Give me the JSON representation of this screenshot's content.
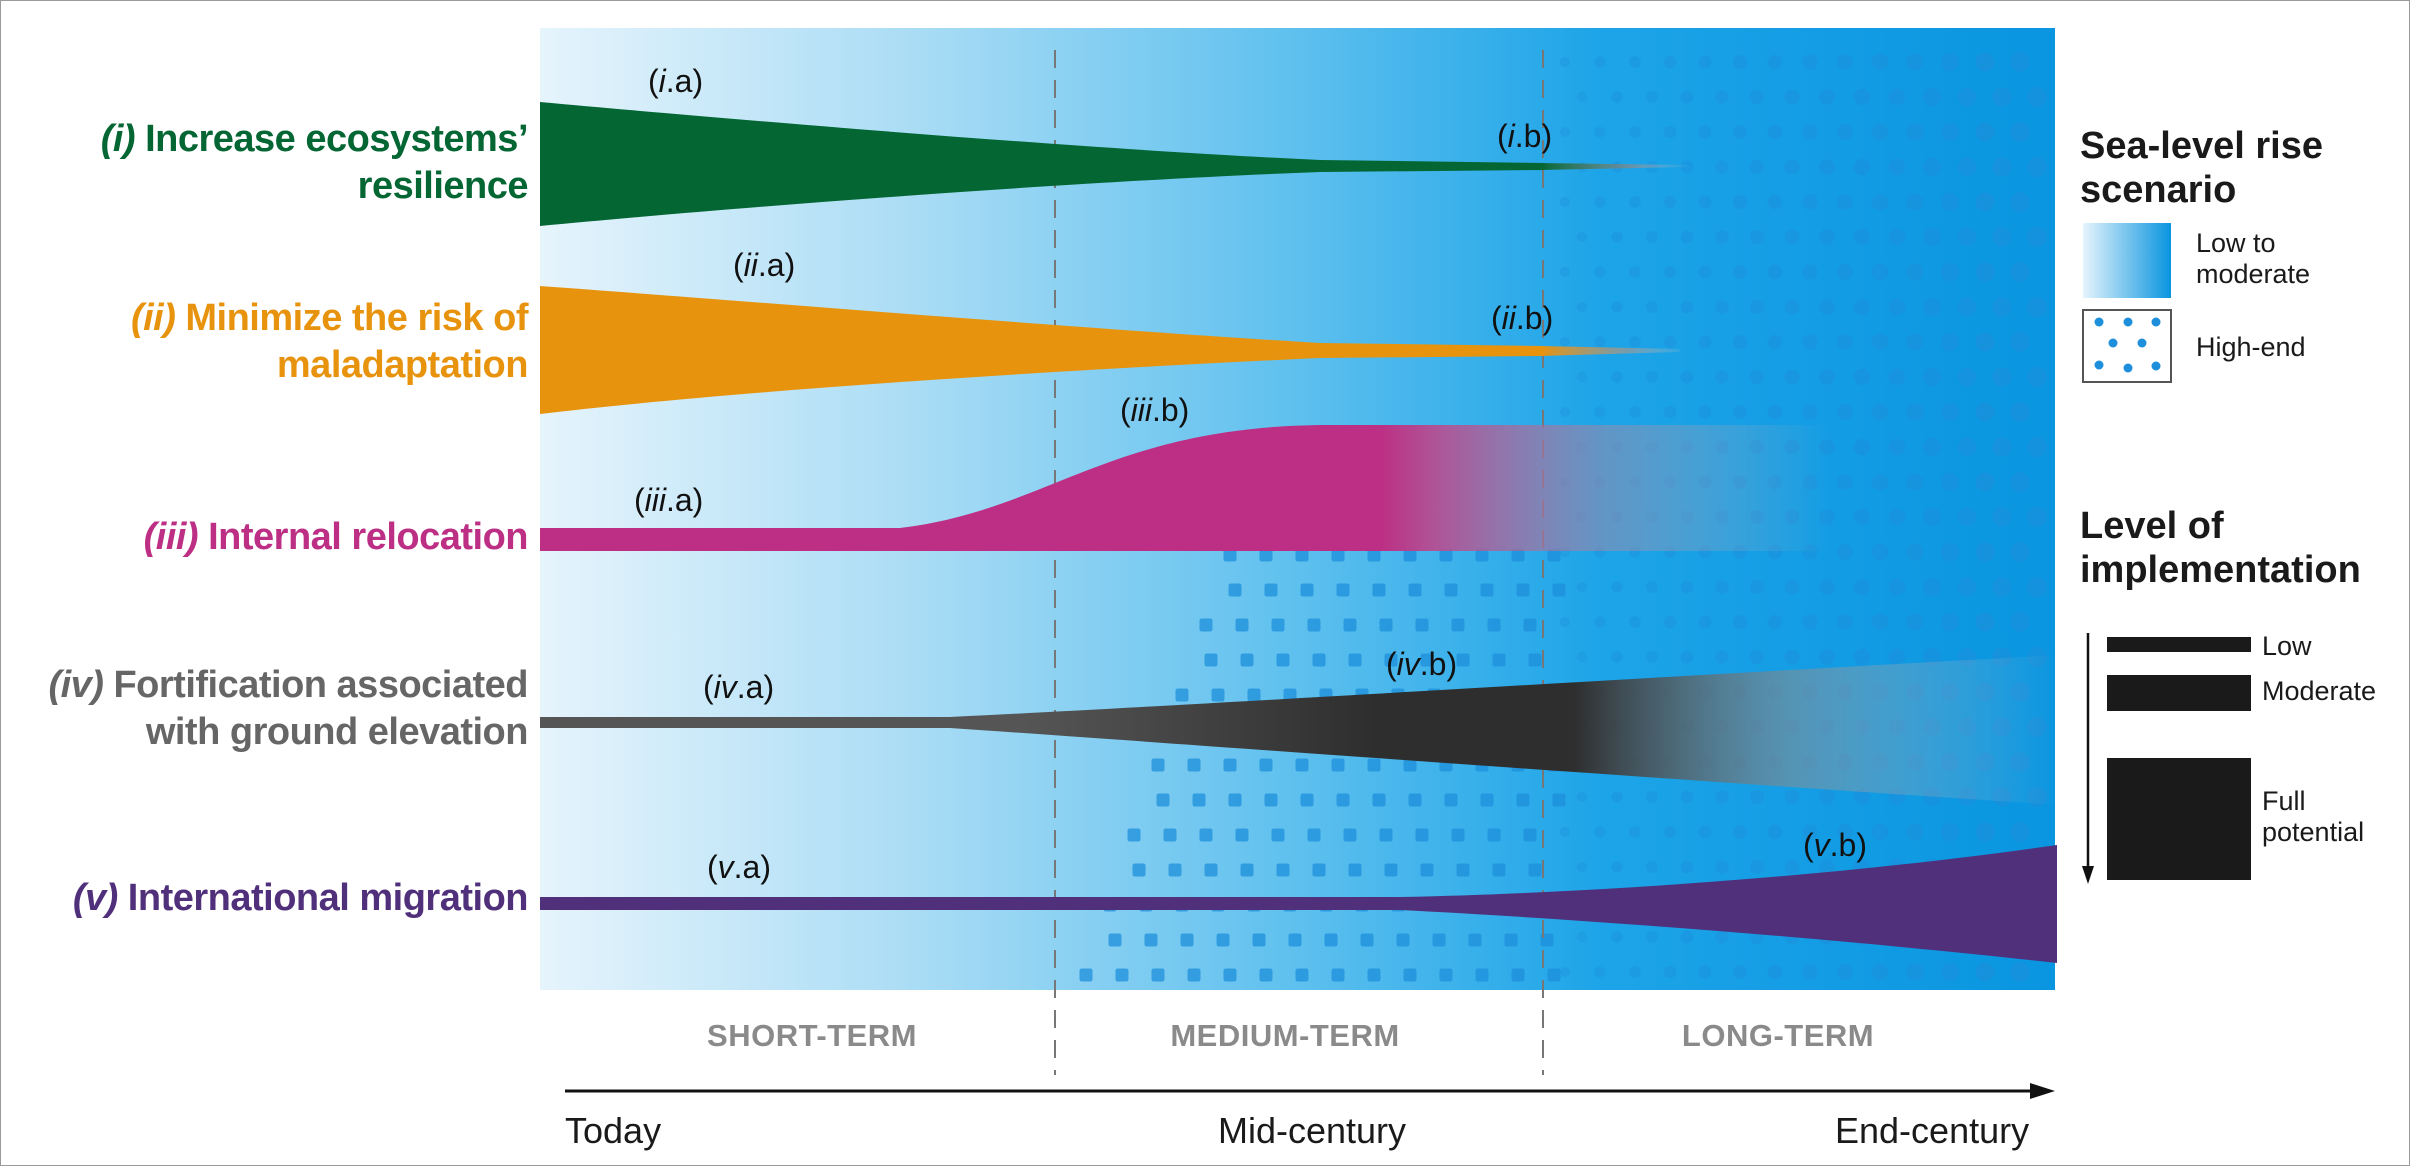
{
  "rows": [
    {
      "num": "(i)",
      "line1": "Increase ecosystems’",
      "line2": "resilience",
      "color": "#036633",
      "start_label": [
        "i",
        ".a"
      ],
      "end_label": [
        "i",
        ".b"
      ]
    },
    {
      "num": "(ii)",
      "line1": "Minimize the risk of",
      "line2": "maladaptation",
      "color": "#e8930d",
      "start_label": [
        "ii",
        ".a"
      ],
      "end_label": [
        "ii",
        ".b"
      ]
    },
    {
      "num": "(iii)",
      "line1": "Internal relocation",
      "line2": "",
      "color": "#bc2f84",
      "start_label": [
        "iii",
        ".a"
      ],
      "end_label": [
        "iii",
        ".b"
      ]
    },
    {
      "num": "(iv)",
      "line1": "Fortification associated",
      "line2": "with ground elevation",
      "color": "#666666",
      "start_label": [
        "iv",
        ".a"
      ],
      "end_label": [
        "iv",
        ".b"
      ]
    },
    {
      "num": "(v)",
      "line1": "International migration",
      "line2": "",
      "color": "#51307b",
      "start_label": [
        "v",
        ".a"
      ],
      "end_label": [
        "v",
        ".b"
      ]
    }
  ],
  "periods": [
    "SHORT-TERM",
    "MEDIUM-TERM",
    "LONG-TERM"
  ],
  "timeline": {
    "start": "Today",
    "mid": "Mid-century",
    "end": "End-century"
  },
  "legend": {
    "scenario_title_1": "Sea-level rise",
    "scenario_title_2": "scenario",
    "low_1": "Low to",
    "low_2": "moderate",
    "high": "High-end",
    "impl_title_1": "Level of",
    "impl_title_2": "implementation",
    "impl_low": "Low",
    "impl_moderate": "Moderate",
    "impl_full_1": "Full",
    "impl_full_2": "potential"
  },
  "colors": {
    "sea_light": "#e6f4fc",
    "sea_mid": "#5ec0ee",
    "sea_dark": "#0995e0",
    "dots": "#1d8fdb",
    "bar": "#1a1a1a",
    "period_text": "#8a8a8a"
  }
}
